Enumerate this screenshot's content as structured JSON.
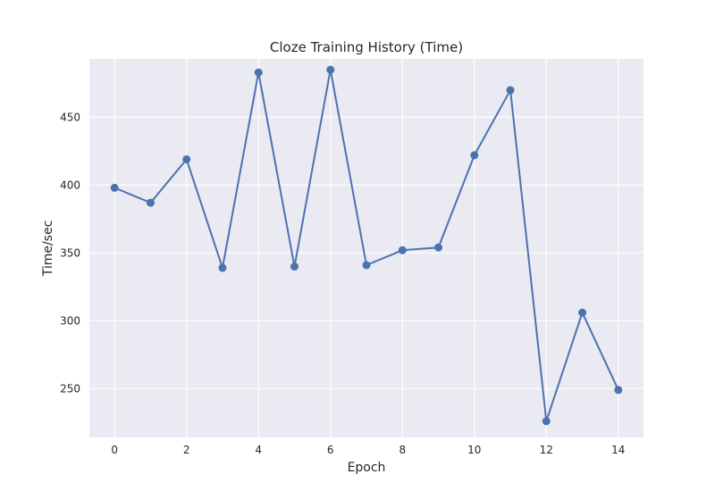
{
  "chart_data": {
    "type": "line",
    "title": "Cloze Training History (Time)",
    "xlabel": "Epoch",
    "ylabel": "Time/sec",
    "xlim": [
      -0.7,
      14.7
    ],
    "ylim": [
      214,
      493
    ],
    "xticks": [
      0,
      2,
      4,
      6,
      8,
      10,
      12,
      14
    ],
    "yticks": [
      250,
      300,
      350,
      400,
      450
    ],
    "grid": true,
    "x": [
      0,
      1,
      2,
      3,
      4,
      5,
      6,
      7,
      8,
      9,
      10,
      11,
      12,
      13,
      14
    ],
    "series": [
      {
        "values": [
          398,
          387,
          419,
          339,
          483,
          340,
          485,
          341,
          352,
          354,
          422,
          470,
          226,
          306,
          249
        ],
        "color": "#4c72b0",
        "marker": "circle"
      }
    ],
    "style": {
      "plot_background": "#eaeaf2",
      "grid_color": "#ffffff",
      "text_color": "#262626"
    }
  }
}
